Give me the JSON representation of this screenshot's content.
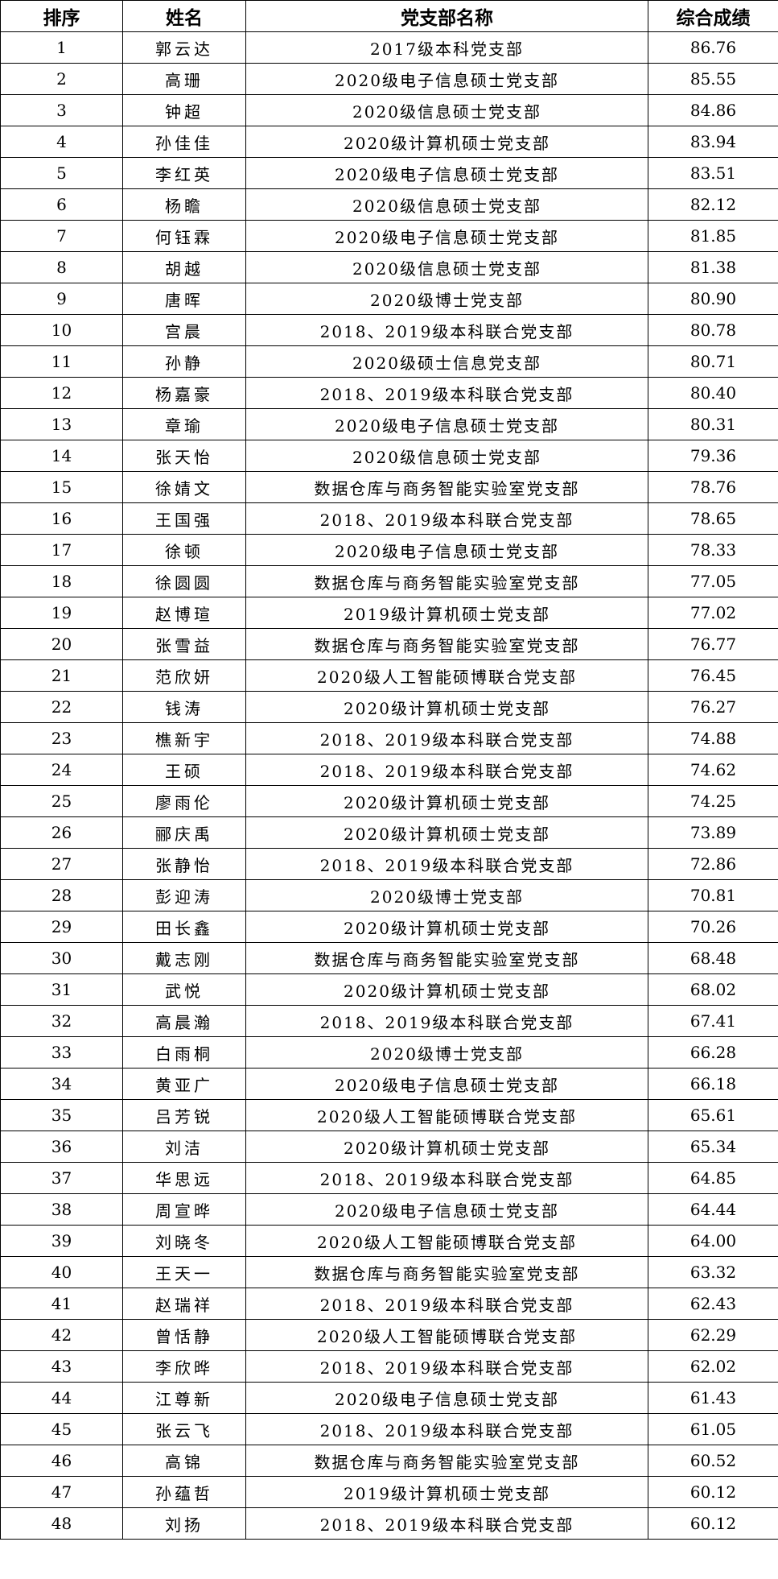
{
  "headers": {
    "rank": "排序",
    "name": "姓名",
    "branch": "党支部名称",
    "score": "综合成绩"
  },
  "rows": [
    {
      "rank": "1",
      "name": "郭云达",
      "branch": "2017级本科党支部",
      "score": "86.76"
    },
    {
      "rank": "2",
      "name": "高珊",
      "branch": "2020级电子信息硕士党支部",
      "score": "85.55"
    },
    {
      "rank": "3",
      "name": "钟超",
      "branch": "2020级信息硕士党支部",
      "score": "84.86"
    },
    {
      "rank": "4",
      "name": "孙佳佳",
      "branch": "2020级计算机硕士党支部",
      "score": "83.94"
    },
    {
      "rank": "5",
      "name": "李红英",
      "branch": "2020级电子信息硕士党支部",
      "score": "83.51"
    },
    {
      "rank": "6",
      "name": "杨瞻",
      "branch": "2020级信息硕士党支部",
      "score": "82.12"
    },
    {
      "rank": "7",
      "name": "何钰霖",
      "branch": "2020级电子信息硕士党支部",
      "score": "81.85"
    },
    {
      "rank": "8",
      "name": "胡越",
      "branch": "2020级信息硕士党支部",
      "score": "81.38"
    },
    {
      "rank": "9",
      "name": "唐晖",
      "branch": "2020级博士党支部",
      "score": "80.90"
    },
    {
      "rank": "10",
      "name": "宫晨",
      "branch": "2018、2019级本科联合党支部",
      "score": "80.78"
    },
    {
      "rank": "11",
      "name": "孙静",
      "branch": "2020级硕士信息党支部",
      "score": "80.71"
    },
    {
      "rank": "12",
      "name": "杨嘉豪",
      "branch": "2018、2019级本科联合党支部",
      "score": "80.40"
    },
    {
      "rank": "13",
      "name": "章瑜",
      "branch": "2020级电子信息硕士党支部",
      "score": "80.31"
    },
    {
      "rank": "14",
      "name": "张天怡",
      "branch": "2020级信息硕士党支部",
      "score": "79.36"
    },
    {
      "rank": "15",
      "name": "徐婧文",
      "branch": "数据仓库与商务智能实验室党支部",
      "score": "78.76"
    },
    {
      "rank": "16",
      "name": "王国强",
      "branch": "2018、2019级本科联合党支部",
      "score": "78.65"
    },
    {
      "rank": "17",
      "name": "徐顿",
      "branch": "2020级电子信息硕士党支部",
      "score": "78.33"
    },
    {
      "rank": "18",
      "name": "徐圆圆",
      "branch": "数据仓库与商务智能实验室党支部",
      "score": "77.05"
    },
    {
      "rank": "19",
      "name": "赵博瑄",
      "branch": "2019级计算机硕士党支部",
      "score": "77.02"
    },
    {
      "rank": "20",
      "name": "张雪益",
      "branch": "数据仓库与商务智能实验室党支部",
      "score": "76.77"
    },
    {
      "rank": "21",
      "name": "范欣妍",
      "branch": "2020级人工智能硕博联合党支部",
      "score": "76.45"
    },
    {
      "rank": "22",
      "name": "钱涛",
      "branch": "2020级计算机硕士党支部",
      "score": "76.27"
    },
    {
      "rank": "23",
      "name": "樵新宇",
      "branch": "2018、2019级本科联合党支部",
      "score": "74.88"
    },
    {
      "rank": "24",
      "name": "王硕",
      "branch": "2018、2019级本科联合党支部",
      "score": "74.62"
    },
    {
      "rank": "25",
      "name": "廖雨伦",
      "branch": "2020级计算机硕士党支部",
      "score": "74.25"
    },
    {
      "rank": "26",
      "name": "郦庆禹",
      "branch": "2020级计算机硕士党支部",
      "score": "73.89"
    },
    {
      "rank": "27",
      "name": "张静怡",
      "branch": "2018、2019级本科联合党支部",
      "score": "72.86"
    },
    {
      "rank": "28",
      "name": "彭迎涛",
      "branch": "2020级博士党支部",
      "score": "70.81"
    },
    {
      "rank": "29",
      "name": "田长鑫",
      "branch": "2020级计算机硕士党支部",
      "score": "70.26"
    },
    {
      "rank": "30",
      "name": "戴志刚",
      "branch": "数据仓库与商务智能实验室党支部",
      "score": "68.48"
    },
    {
      "rank": "31",
      "name": "武悦",
      "branch": "2020级计算机硕士党支部",
      "score": "68.02"
    },
    {
      "rank": "32",
      "name": "高晨瀚",
      "branch": "2018、2019级本科联合党支部",
      "score": "67.41"
    },
    {
      "rank": "33",
      "name": "白雨桐",
      "branch": "2020级博士党支部",
      "score": "66.28"
    },
    {
      "rank": "34",
      "name": "黄亚广",
      "branch": "2020级电子信息硕士党支部",
      "score": "66.18"
    },
    {
      "rank": "35",
      "name": "吕芳锐",
      "branch": "2020级人工智能硕博联合党支部",
      "score": "65.61"
    },
    {
      "rank": "36",
      "name": "刘洁",
      "branch": "2020级计算机硕士党支部",
      "score": "65.34"
    },
    {
      "rank": "37",
      "name": "华思远",
      "branch": "2018、2019级本科联合党支部",
      "score": "64.85"
    },
    {
      "rank": "38",
      "name": "周宣晔",
      "branch": "2020级电子信息硕士党支部",
      "score": "64.44"
    },
    {
      "rank": "39",
      "name": "刘晓冬",
      "branch": "2020级人工智能硕博联合党支部",
      "score": "64.00"
    },
    {
      "rank": "40",
      "name": "王天一",
      "branch": "数据仓库与商务智能实验室党支部",
      "score": "63.32"
    },
    {
      "rank": "41",
      "name": "赵瑞祥",
      "branch": "2018、2019级本科联合党支部",
      "score": "62.43"
    },
    {
      "rank": "42",
      "name": "曾恬静",
      "branch": "2020级人工智能硕博联合党支部",
      "score": "62.29"
    },
    {
      "rank": "43",
      "name": "李欣晔",
      "branch": "2018、2019级本科联合党支部",
      "score": "62.02"
    },
    {
      "rank": "44",
      "name": "江尊新",
      "branch": "2020级电子信息硕士党支部",
      "score": "61.43"
    },
    {
      "rank": "45",
      "name": "张云飞",
      "branch": "2018、2019级本科联合党支部",
      "score": "61.05"
    },
    {
      "rank": "46",
      "name": "高锦",
      "branch": "数据仓库与商务智能实验室党支部",
      "score": "60.52"
    },
    {
      "rank": "47",
      "name": "孙蕴哲",
      "branch": "2019级计算机硕士党支部",
      "score": "60.12"
    },
    {
      "rank": "48",
      "name": "刘扬",
      "branch": "2018、2019级本科联合党支部",
      "score": "60.12"
    }
  ]
}
